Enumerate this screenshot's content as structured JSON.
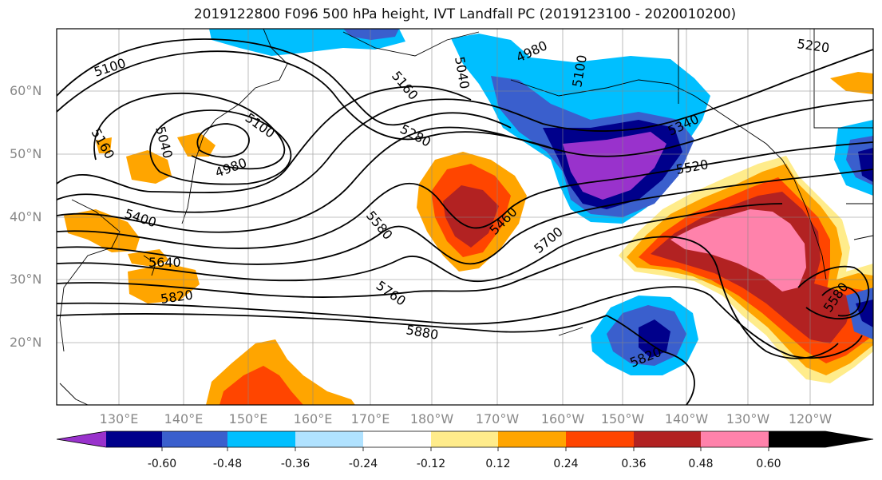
{
  "title": "2019122800 F096 500 hPa height, IVT Landfall PC (2019123100 - 2020010200)",
  "lat_ticks": [
    "60°N",
    "50°N",
    "40°N",
    "30°N",
    "20°N"
  ],
  "lon_ticks": [
    "130°E",
    "140°E",
    "150°E",
    "160°E",
    "170°E",
    "180°W",
    "170°W",
    "160°W",
    "150°W",
    "140°W",
    "130°W",
    "120°W"
  ],
  "contour_labels": [
    "5100",
    "5160",
    "5040",
    "4980",
    "5100",
    "5160",
    "5040",
    "4980",
    "5100",
    "5220",
    "5280",
    "5340",
    "5520",
    "5400",
    "5460",
    "5580",
    "5640",
    "5700",
    "5760",
    "5820",
    "5880",
    "5820",
    "5580"
  ],
  "colorbar": {
    "colors": [
      "#9932CC",
      "#00008B",
      "#3A5FCD",
      "#00BFFF",
      "#B0E2FF",
      "#FFFFFF",
      "#FFEC8B",
      "#FFA500",
      "#FF4500",
      "#B22222",
      "#FF82AB"
    ],
    "tick_labels": [
      "-0.60",
      "-0.48",
      "-0.36",
      "-0.24",
      "-0.12",
      "0.12",
      "0.24",
      "0.36",
      "0.48",
      "0.60"
    ]
  }
}
